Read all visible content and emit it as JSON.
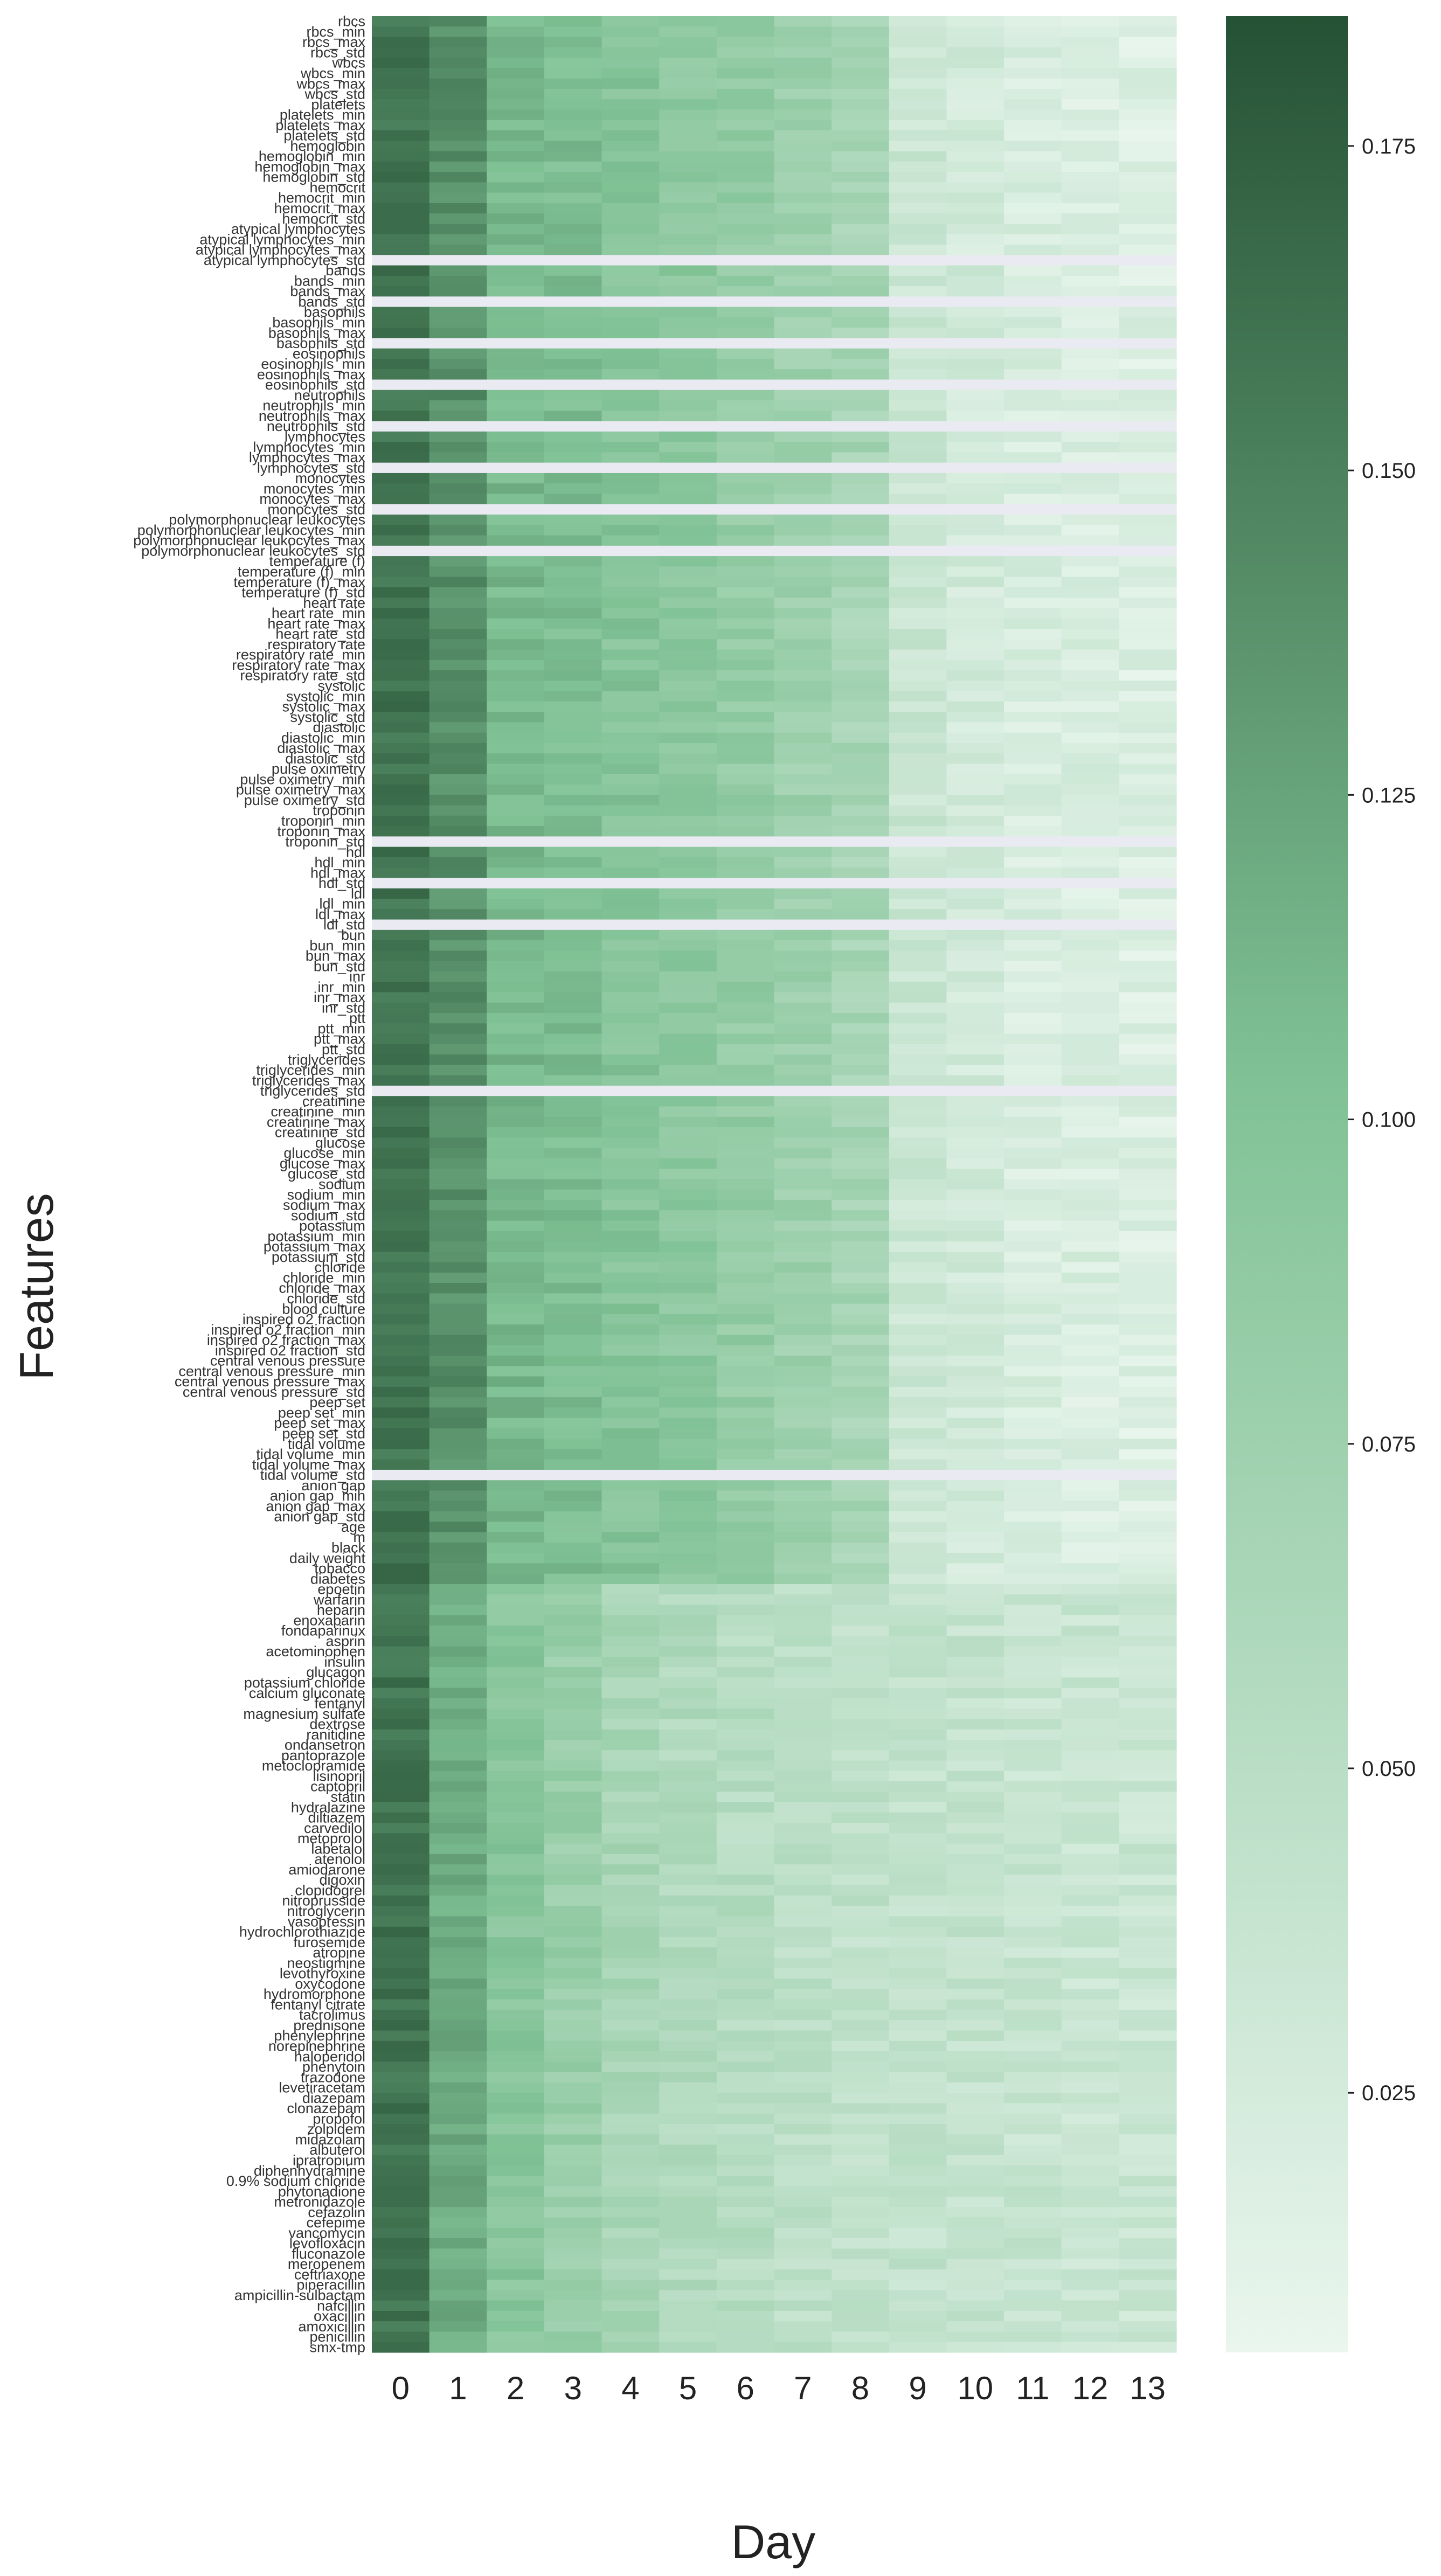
{
  "chart_data": {
    "type": "heatmap",
    "xlabel": "Day",
    "ylabel": "Features",
    "x_categories": [
      "0",
      "1",
      "2",
      "3",
      "4",
      "5",
      "6",
      "7",
      "8",
      "9",
      "10",
      "11",
      "12",
      "13"
    ],
    "colorbar": {
      "min": 0.005,
      "max": 0.185,
      "ticks": [
        "0.025",
        "0.050",
        "0.075",
        "0.100",
        "0.125",
        "0.150",
        "0.175"
      ],
      "color_low": "#eaf6ee",
      "color_high": "#255134"
    },
    "features": [
      "rbcs",
      "rbcs_min",
      "rbcs_max",
      "rbcs_std",
      "wbcs",
      "wbcs_min",
      "wbcs_max",
      "wbcs_std",
      "platelets",
      "platelets_min",
      "platelets_max",
      "platelets_std",
      "hemoglobin",
      "hemoglobin_min",
      "hemoglobin_max",
      "hemoglobin_std",
      "hemocrit",
      "hemocrit_min",
      "hemocrit_max",
      "hemocrit_std",
      "atypical lymphocytes",
      "atypical lymphocytes_min",
      "atypical lymphocytes_max",
      "atypical lymphocytes_std",
      "bands",
      "bands_min",
      "bands_max",
      "bands_std",
      "basophils",
      "basophils_min",
      "basophils_max",
      "basophils_std",
      "eosinophils",
      "eosinophils_min",
      "eosinophils_max",
      "eosinophils_std",
      "neutrophils",
      "neutrophils_min",
      "neutrophils_max",
      "neutrophils_std",
      "lymphocytes",
      "lymphocytes_min",
      "lymphocytes_max",
      "lymphocytes_std",
      "monocytes",
      "monocytes_min",
      "monocytes_max",
      "monocytes_std",
      "polymorphonuclear leukocytes",
      "polymorphonuclear leukocytes_min",
      "polymorphonuclear leukocytes_max",
      "polymorphonuclear leukocytes_std",
      "temperature (f)",
      "temperature (f)_min",
      "temperature (f)_max",
      "temperature (f)_std",
      "heart rate",
      "heart rate_min",
      "heart rate_max",
      "heart rate_std",
      "respiratory rate",
      "respiratory rate_min",
      "respiratory rate_max",
      "respiratory rate_std",
      "systolic",
      "systolic_min",
      "systolic_max",
      "systolic_std",
      "diastolic",
      "diastolic_min",
      "diastolic_max",
      "diastolic_std",
      "pulse oximetry",
      "pulse oximetry_min",
      "pulse oximetry_max",
      "pulse oximetry_std",
      "troponin",
      "troponin_min",
      "troponin_max",
      "troponin_std",
      "hdl",
      "hdl_min",
      "hdl_max",
      "hdl_std",
      "ldl",
      "ldl_min",
      "ldl_max",
      "ldl_std",
      "bun",
      "bun_min",
      "bun_max",
      "bun_std",
      "inr",
      "inr_min",
      "inr_max",
      "inr_std",
      "ptt",
      "ptt_min",
      "ptt_max",
      "ptt_std",
      "triglycerides",
      "triglycerides_min",
      "triglycerides_max",
      "triglycerides_std",
      "creatinine",
      "creatinine_min",
      "creatinine_max",
      "creatinine_std",
      "glucose",
      "glucose_min",
      "glucose_max",
      "glucose_std",
      "sodium",
      "sodium_min",
      "sodium_max",
      "sodium_std",
      "potassium",
      "potassium_min",
      "potassium_max",
      "potassium_std",
      "chloride",
      "chloride_min",
      "chloride_max",
      "chloride_std",
      "blood culture",
      "inspired o2 fraction",
      "inspired o2 fraction_min",
      "inspired o2 fraction_max",
      "inspired o2 fraction_std",
      "central venous pressure",
      "central venous pressure_min",
      "central venous pressure_max",
      "central venous pressure_std",
      "peep set",
      "peep set_min",
      "peep set_max",
      "peep set_std",
      "tidal volume",
      "tidal volume_min",
      "tidal volume_max",
      "tidal volume_std",
      "anion gap",
      "anion gap_min",
      "anion gap_max",
      "anion gap_std",
      "age",
      "m",
      "black",
      "daily weight",
      "tobacco",
      "diabetes",
      "epoetin",
      "warfarin",
      "heparin",
      "enoxaparin",
      "fondaparinux",
      "asprin",
      "acetominophen",
      "insulin",
      "glucagon",
      "potassium chloride",
      "calcium gluconate",
      "fentanyl",
      "magnesium sulfate",
      "dextrose",
      "ranitidine",
      "ondansetron",
      "pantoprazole",
      "metoclopramide",
      "lisinopril",
      "captopril",
      "statin",
      "hydralazine",
      "diltiazem",
      "carvedilol",
      "metoprolol",
      "labetalol",
      "atenolol",
      "amiodarone",
      "digoxin",
      "clopidogrel",
      "nitroprusside",
      "nitroglycerin",
      "vasopressin",
      "hydrochlorothiazide",
      "furosemide",
      "atropine",
      "neostigmine",
      "levothyroxine",
      "oxycodone",
      "hydromorphone",
      "fentanyl citrate",
      "tacrolimus",
      "prednisone",
      "phenylephrine",
      "norepinephrine",
      "haloperidol",
      "phenytoin",
      "trazodone",
      "levetiracetam",
      "diazepam",
      "clonazepam",
      "propofol",
      "zolpidem",
      "midazolam",
      "albuterol",
      "ipratropium",
      "diphenhydramine",
      "0.9% sodium chloride",
      "phytonadione",
      "metronidazole",
      "cefazolin",
      "cefepime",
      "vancomycin",
      "levofloxacin",
      "fluconazole",
      "meropenem",
      "ceftriaxone",
      "piperacillin",
      "ampicillin-sulbactam",
      "nafcillin",
      "oxacillin",
      "amoxicillin",
      "penicillin",
      "smx-tmp"
    ],
    "blank_rows": [
      "atypical lymphocytes_std",
      "bands_std",
      "basophils_std",
      "eosinophils_std",
      "neutrophils_std",
      "lymphocytes_std",
      "monocytes_std",
      "polymorphonuclear leukocytes_std",
      "troponin_std",
      "hdl_std",
      "ldl_std",
      "triglycerides_std",
      "tidal volume_std"
    ],
    "row_profiles": {
      "default": [
        0.16,
        0.135,
        0.11,
        0.1,
        0.092,
        0.085,
        0.08,
        0.07,
        0.062,
        0.035,
        0.028,
        0.022,
        0.02,
        0.018
      ],
      "labs": [
        0.16,
        0.14,
        0.11,
        0.105,
        0.098,
        0.092,
        0.085,
        0.076,
        0.068,
        0.035,
        0.028,
        0.022,
        0.02,
        0.018
      ],
      "meds": [
        0.16,
        0.12,
        0.095,
        0.08,
        0.066,
        0.058,
        0.053,
        0.048,
        0.045,
        0.042,
        0.04,
        0.038,
        0.036,
        0.035
      ]
    }
  }
}
